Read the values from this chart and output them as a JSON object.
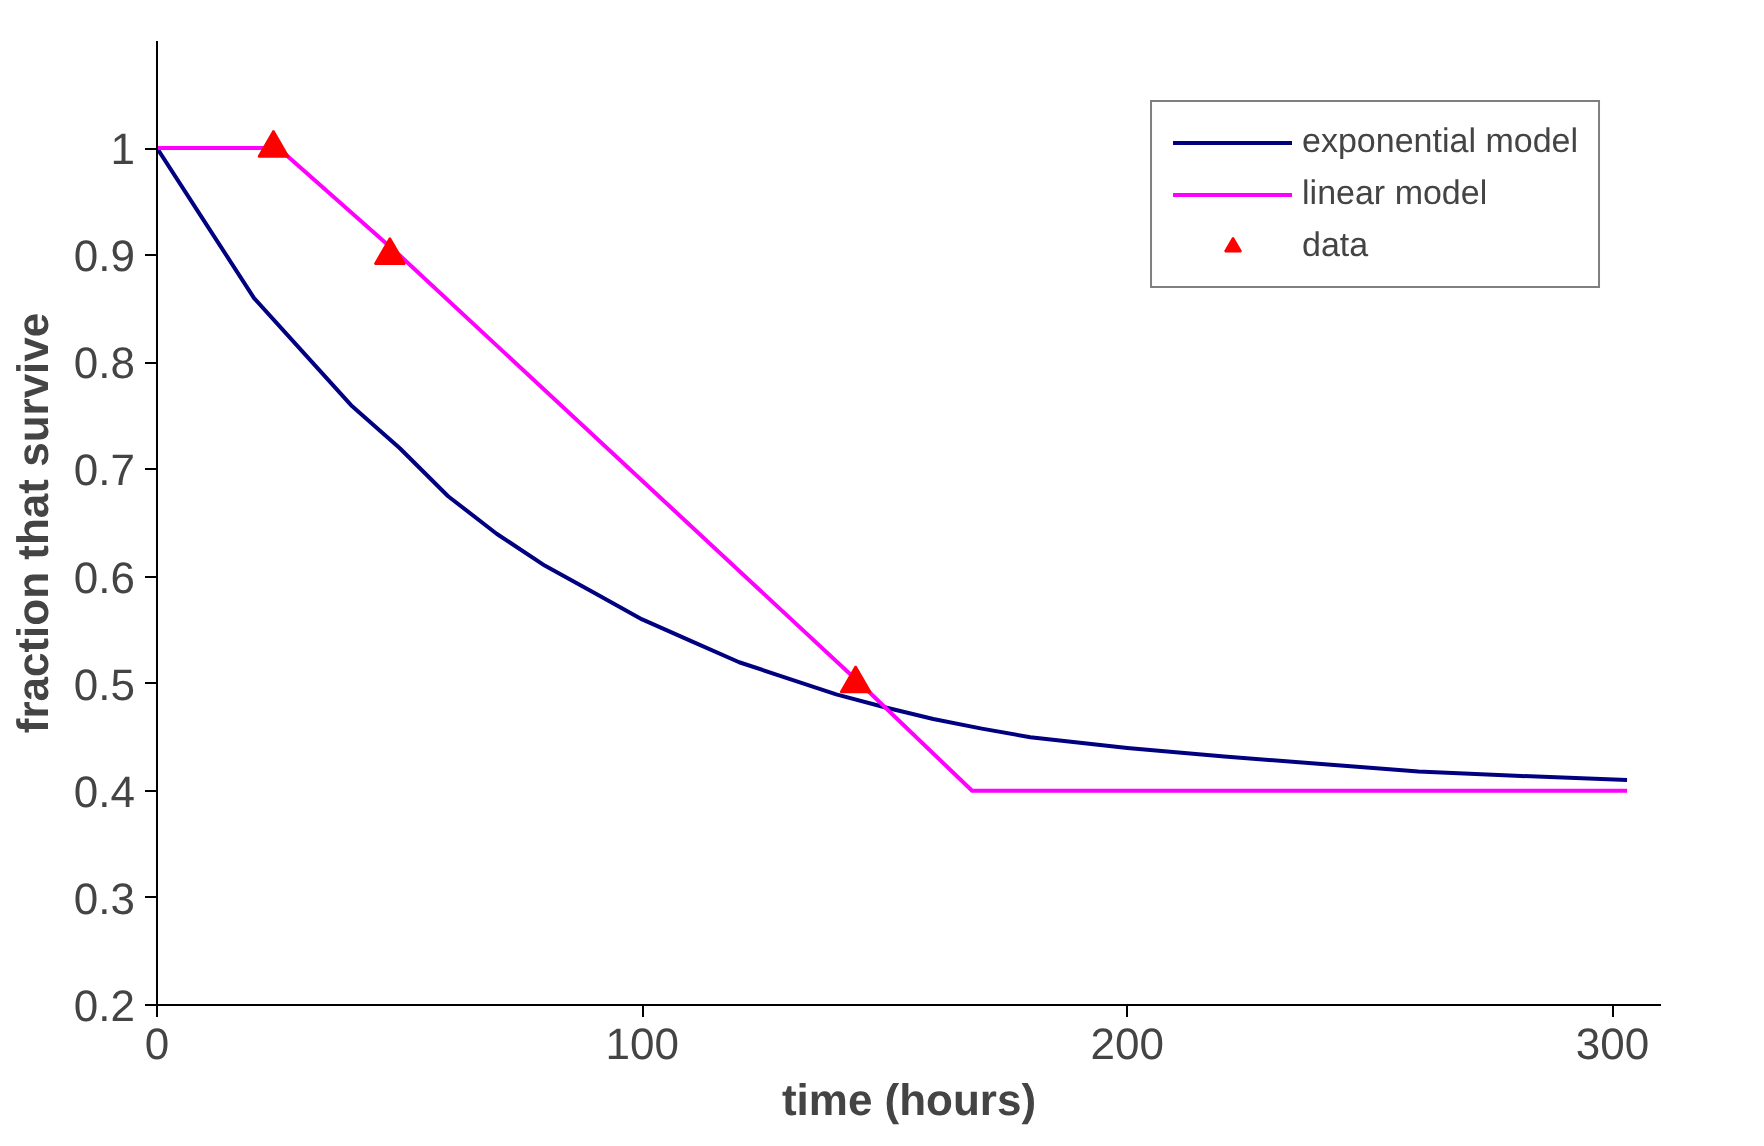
{
  "chart_data": {
    "type": "line",
    "xlabel": "time (hours)",
    "ylabel": "fraction that survive",
    "xlim": [
      0,
      310
    ],
    "ylim": [
      0.2,
      1.1
    ],
    "xticks": [
      0,
      100,
      200,
      300
    ],
    "yticks": [
      0.2,
      0.3,
      0.4,
      0.5,
      0.6,
      0.7,
      0.8,
      0.9,
      1
    ],
    "grid": false,
    "legend": "top right",
    "series": [
      {
        "name": "exponential model",
        "color": "#000080",
        "x": [
          0,
          10,
          20,
          30,
          40,
          50,
          60,
          70,
          80,
          90,
          100,
          110,
          120,
          130,
          140,
          150,
          160,
          170,
          180,
          200,
          220,
          240,
          260,
          280,
          303
        ],
        "values": [
          1,
          0.93,
          0.86,
          0.81,
          0.76,
          0.72,
          0.675,
          0.64,
          0.61,
          0.585,
          0.56,
          0.54,
          0.52,
          0.505,
          0.49,
          0.478,
          0.467,
          0.458,
          0.45,
          0.44,
          0.432,
          0.425,
          0.418,
          0.414,
          0.41
        ]
      },
      {
        "name": "linear model",
        "color": "#ff00ff",
        "x": [
          0,
          25,
          50,
          145,
          168,
          303
        ],
        "values": [
          1,
          1,
          0.9,
          0.5,
          0.4,
          0.4
        ]
      },
      {
        "name": "data",
        "type": "scatter",
        "marker": "triangle",
        "color": "#ff0000",
        "x": [
          24,
          48,
          144
        ],
        "values": [
          1,
          0.9,
          0.5
        ]
      }
    ]
  }
}
